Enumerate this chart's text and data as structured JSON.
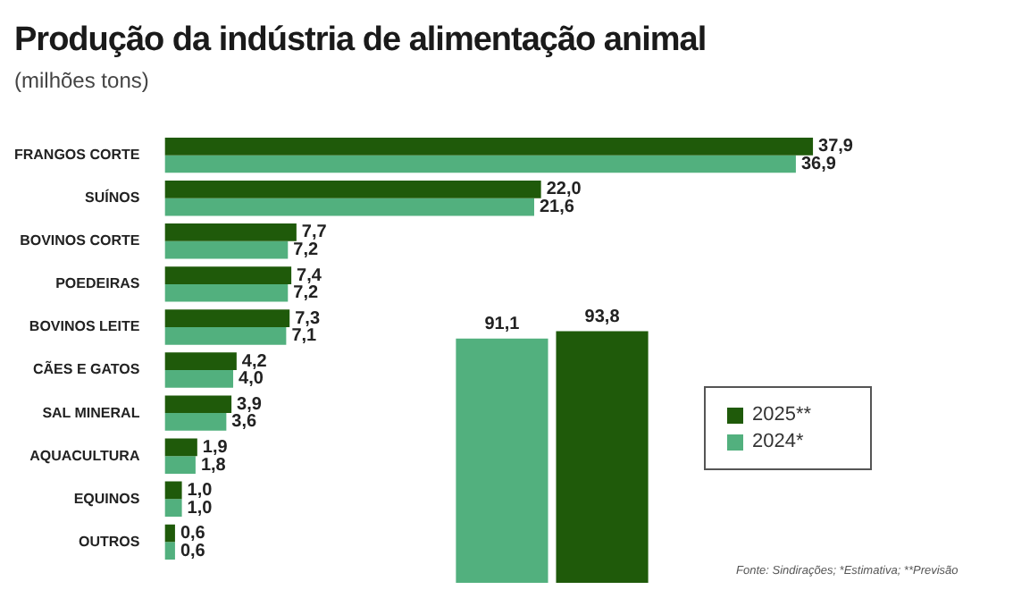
{
  "chart_data": [
    {
      "type": "bar",
      "orientation": "horizontal",
      "title": "Produção da indústria de alimentação animal",
      "subtitle": "(milhões tons)",
      "categories": [
        "FRANGOS CORTE",
        "SUÍNOS",
        "BOVINOS CORTE",
        "POEDEIRAS",
        "BOVINOS LEITE",
        "CÃES E GATOS",
        "SAL MINERAL",
        "AQUACULTURA",
        "EQUINOS",
        "OUTROS"
      ],
      "series": [
        {
          "color": "#1f5a0a",
          "values": [
            37.9,
            22.0,
            7.7,
            7.4,
            7.3,
            4.2,
            3.9,
            1.9,
            1.0,
            0.6
          ],
          "value_labels": [
            "37,9",
            "22,0",
            "7,7",
            "7,4",
            "7,3",
            "4,2",
            "3,9",
            "1,9",
            "1,0",
            "0,6"
          ]
        },
        {
          "color": "#52b07e",
          "values": [
            36.9,
            21.6,
            7.2,
            7.2,
            7.1,
            4.0,
            3.6,
            1.8,
            1.0,
            0.6
          ],
          "value_labels": [
            "36,9",
            "21,6",
            "7,2",
            "7,2",
            "7,1",
            "4,0",
            "3,6",
            "1,8",
            "1,0",
            "0,6"
          ]
        }
      ],
      "tick_labels": "y",
      "annotations": [
        "Fonte: Sindirações; *Estimativa; **Previsão"
      ]
    },
    {
      "type": "bar",
      "categories": [
        null
      ],
      "series": [
        {
          "name": "2024*",
          "color": "#52b07e",
          "values": [
            91.1
          ],
          "value_labels": [
            "91,1"
          ]
        },
        {
          "name": "2025**",
          "color": "#1f5a0a",
          "values": [
            93.8
          ],
          "value_labels": [
            "93,8"
          ]
        }
      ],
      "tick_labels": false,
      "legend": "right"
    }
  ]
}
